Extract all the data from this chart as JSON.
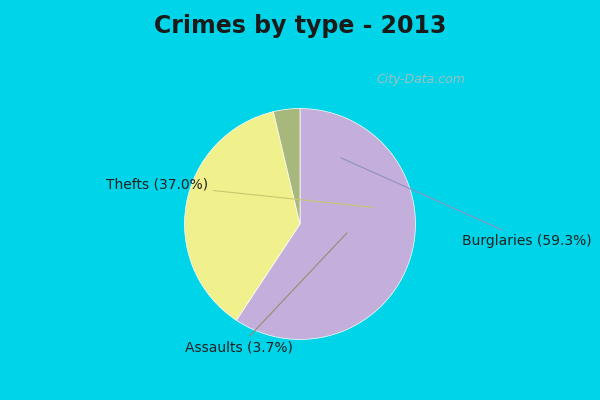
{
  "title": "Crimes by type - 2013",
  "slices": [
    {
      "label": "Burglaries (59.3%)",
      "value": 59.3,
      "color": "#C4AEDC"
    },
    {
      "label": "Thefts (37.0%)",
      "value": 37.0,
      "color": "#F0F08C"
    },
    {
      "label": "Assaults (3.7%)",
      "value": 3.7,
      "color": "#A8B87C"
    }
  ],
  "background_top": "#00D4E8",
  "background_main": "#C8E8D8",
  "title_fontsize": 17,
  "label_fontsize": 10,
  "startangle": 90,
  "figsize": [
    6.0,
    4.0
  ],
  "dpi": 100
}
